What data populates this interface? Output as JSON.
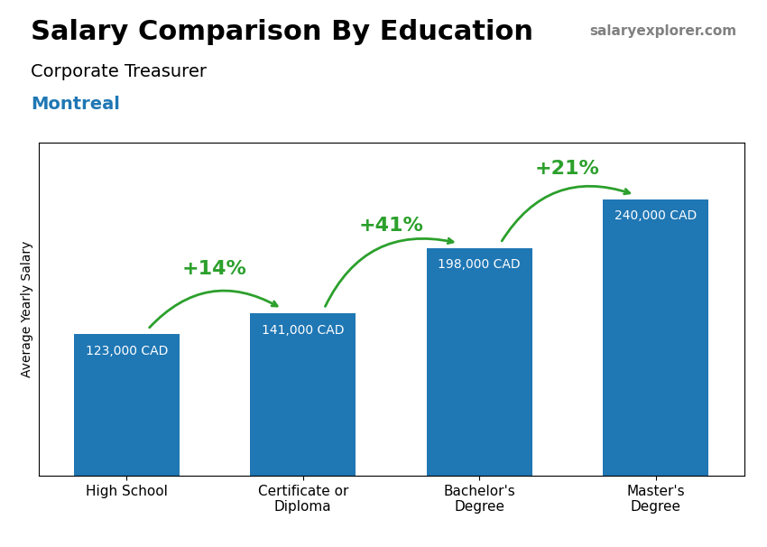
{
  "chart_data": {
    "type": "bar",
    "title": "Salary Comparison By Education",
    "subtitle": "Corporate Treasurer",
    "ylabel": "Average Yearly Salary",
    "categories": [
      "High School",
      "Certificate or\nDiploma",
      "Bachelor's\nDegree",
      "Master's\nDegree"
    ],
    "values": [
      123000,
      141000,
      198000,
      240000
    ],
    "value_labels": [
      "123,000 CAD",
      "141,000 CAD",
      "198,000 CAD",
      "240,000 CAD"
    ],
    "data_labels": true,
    "ylim": [
      0,
      290000
    ],
    "tick_labels": "x",
    "grid": false,
    "annotations": [
      {
        "text": "Montreal"
      },
      {
        "text": "salaryexplorer.com"
      },
      {
        "text": "+14%",
        "from": 0,
        "to": 1
      },
      {
        "text": "+41%",
        "from": 1,
        "to": 2
      },
      {
        "text": "+21%",
        "from": 2,
        "to": 3
      }
    ]
  }
}
